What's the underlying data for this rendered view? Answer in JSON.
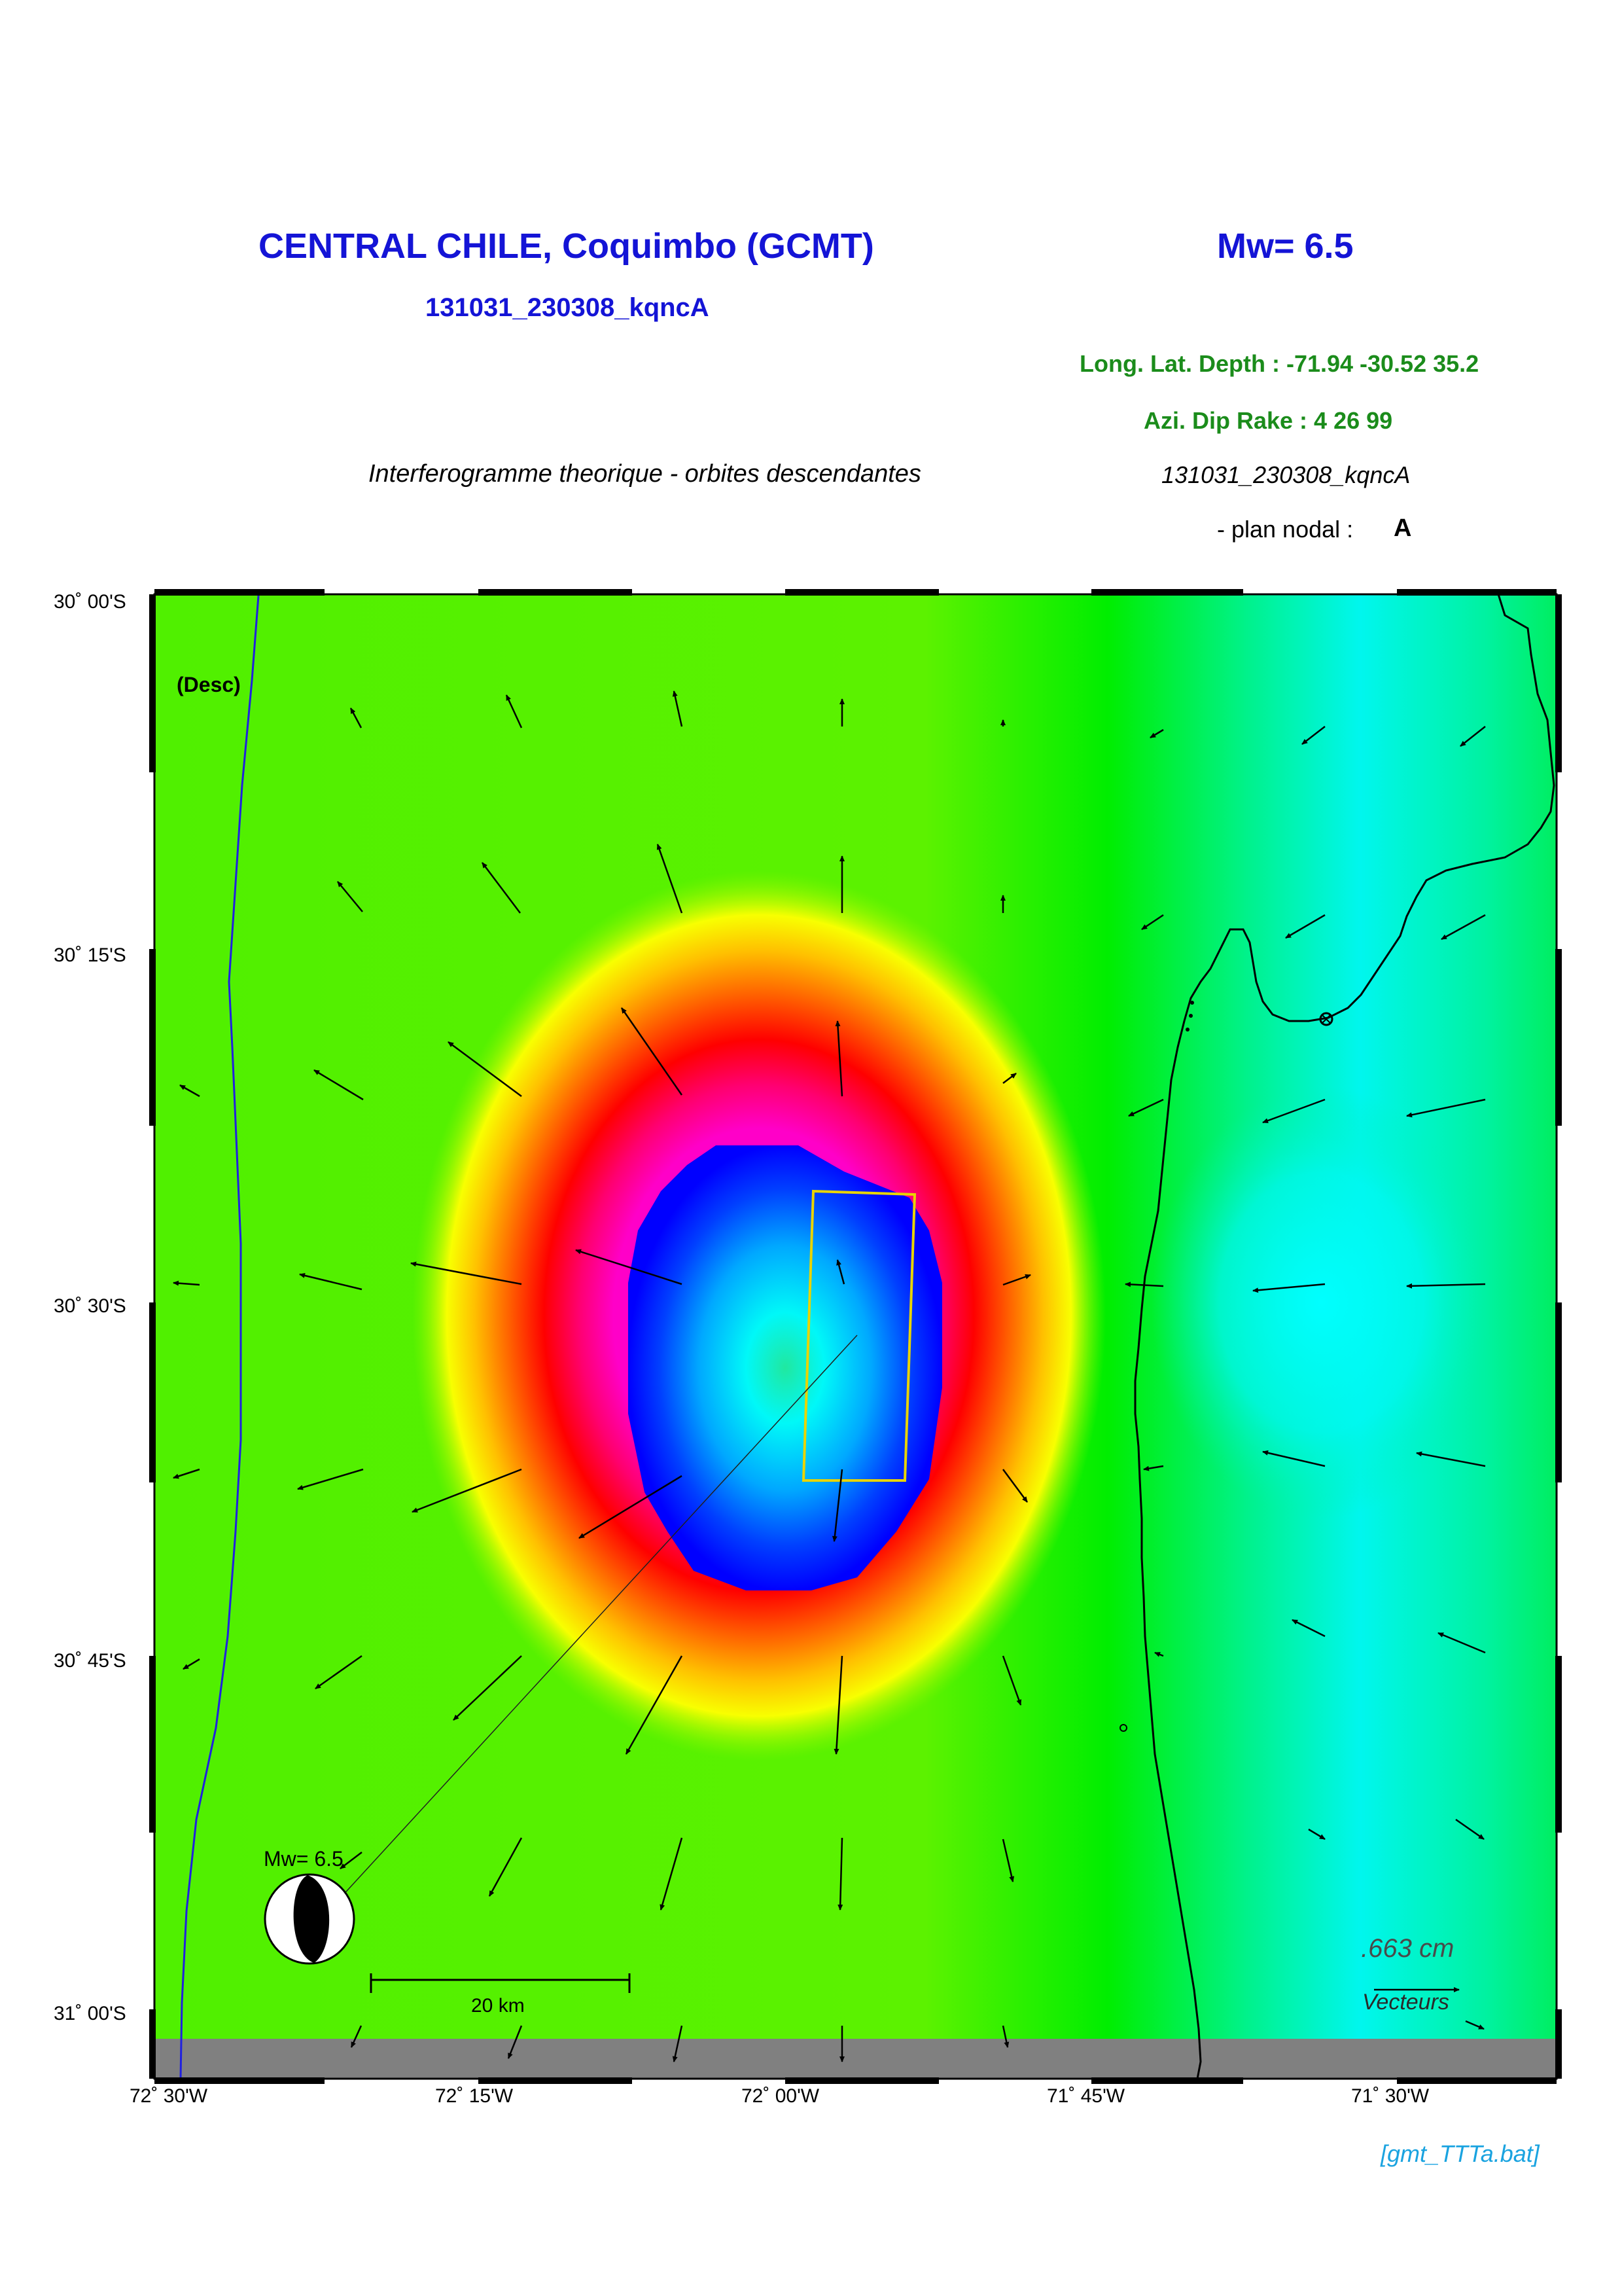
{
  "header": {
    "title": "CENTRAL CHILE, Coquimbo (GCMT)",
    "magnitude": "Mw= 6.5",
    "event_id": "131031_230308_kqncA",
    "location_line": "Long. Lat. Depth : -71.94 -30.52 35.2",
    "mechanism_line": "Azi.  Dip   Rake :  4 26 99",
    "description": "Interferogramme theorique - orbites descendantes",
    "event_id_italic": "131031_230308_kqncA",
    "nodal_label": "- plan nodal :",
    "nodal_value": "A"
  },
  "map": {
    "latitude_labels": [
      "30˚ 00'S",
      "30˚ 15'S",
      "30˚ 30'S",
      "30˚ 45'S",
      "31˚ 00'S"
    ],
    "longitude_labels": [
      "72˚ 30'W",
      "72˚ 15'W",
      "72˚ 00'W",
      "71˚ 45'W",
      "71˚ 30'W"
    ],
    "orbit_label": "(Desc)",
    "beachball_label": "Mw= 6.5",
    "scale_label": "20 km",
    "vector_scale_value": ".663  cm",
    "vector_scale_label": "Vecteurs"
  },
  "footer": {
    "script_name": "[gmt_TTTa.bat]"
  },
  "colors": {
    "title_blue": "#1414d6",
    "info_green": "#1b8c1b",
    "credit_cyan": "#1aa3e0",
    "fault_outline": "#e8d400",
    "trench_line": "#2020e0"
  }
}
